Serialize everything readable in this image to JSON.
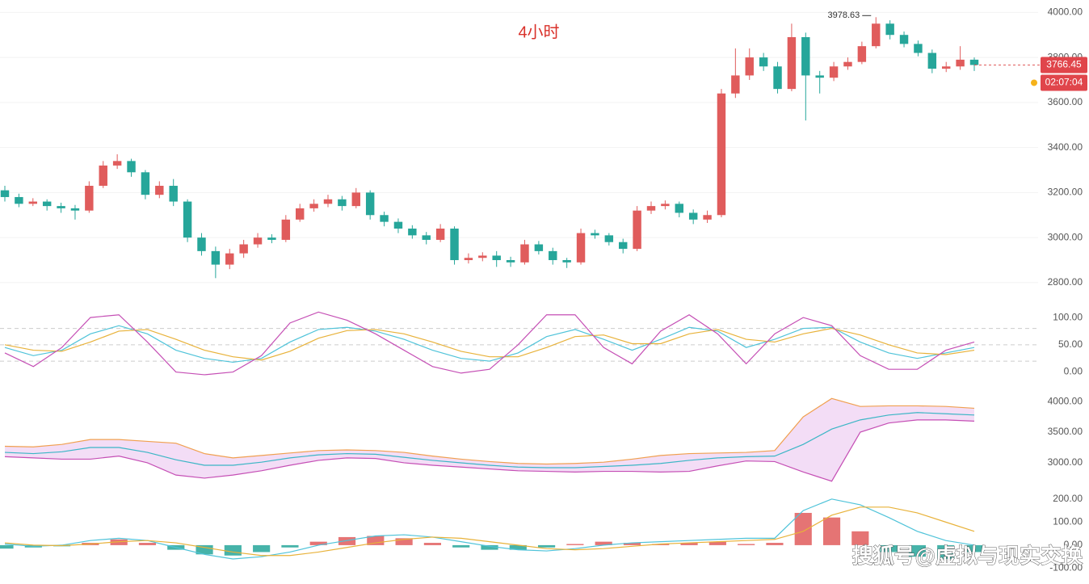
{
  "title": "4小时",
  "countdown": "02:07:04",
  "watermark": "搜狐号@虚拟与现实交换",
  "chart_data": [
    {
      "type": "candlestick",
      "up_color": "#e05c5c",
      "down_color": "#26a69a",
      "grid": true,
      "ylim": [
        2710,
        4055
      ],
      "yticks": [
        {
          "value": 4000,
          "label": "4000.00"
        },
        {
          "value": 3800,
          "label": "3800.00"
        },
        {
          "value": 3600,
          "label": "3600.00"
        },
        {
          "value": 3400,
          "label": "3400.00"
        },
        {
          "value": 3200,
          "label": "3200.00"
        },
        {
          "value": 3000,
          "label": "3000.00"
        },
        {
          "value": 2800,
          "label": "2800.00"
        }
      ],
      "candles": [
        [
          3210,
          3230,
          3160,
          3180
        ],
        [
          3180,
          3195,
          3135,
          3150
        ],
        [
          3150,
          3175,
          3140,
          3160
        ],
        [
          3160,
          3170,
          3120,
          3140
        ],
        [
          3140,
          3155,
          3110,
          3130
        ],
        [
          3130,
          3145,
          3080,
          3120
        ],
        [
          3120,
          3250,
          3110,
          3230
        ],
        [
          3230,
          3340,
          3220,
          3320
        ],
        [
          3320,
          3370,
          3305,
          3340
        ],
        [
          3340,
          3350,
          3270,
          3290
        ],
        [
          3290,
          3300,
          3170,
          3190
        ],
        [
          3190,
          3250,
          3175,
          3230
        ],
        [
          3230,
          3260,
          3140,
          3160
        ],
        [
          3160,
          3170,
          2980,
          3000
        ],
        [
          3000,
          3020,
          2920,
          2940
        ],
        [
          2940,
          2960,
          2820,
          2880
        ],
        [
          2880,
          2950,
          2860,
          2930
        ],
        [
          2930,
          2990,
          2910,
          2970
        ],
        [
          2970,
          3020,
          2955,
          3000
        ],
        [
          3000,
          3015,
          2975,
          2990
        ],
        [
          2990,
          3100,
          2980,
          3080
        ],
        [
          3080,
          3150,
          3070,
          3130
        ],
        [
          3130,
          3170,
          3115,
          3150
        ],
        [
          3150,
          3190,
          3135,
          3170
        ],
        [
          3170,
          3185,
          3120,
          3140
        ],
        [
          3140,
          3220,
          3130,
          3200
        ],
        [
          3200,
          3210,
          3080,
          3100
        ],
        [
          3100,
          3115,
          3050,
          3070
        ],
        [
          3070,
          3085,
          3020,
          3040
        ],
        [
          3040,
          3055,
          2995,
          3010
        ],
        [
          3010,
          3025,
          2970,
          2990
        ],
        [
          2990,
          3060,
          2980,
          3040
        ],
        [
          3040,
          3050,
          2880,
          2900
        ],
        [
          2900,
          2930,
          2885,
          2910
        ],
        [
          2910,
          2935,
          2895,
          2920
        ],
        [
          2920,
          2940,
          2870,
          2900
        ],
        [
          2900,
          2915,
          2870,
          2890
        ],
        [
          2890,
          2990,
          2880,
          2970
        ],
        [
          2970,
          2985,
          2925,
          2940
        ],
        [
          2940,
          2955,
          2880,
          2900
        ],
        [
          2900,
          2910,
          2865,
          2890
        ],
        [
          2890,
          3040,
          2880,
          3020
        ],
        [
          3020,
          3035,
          2995,
          3010
        ],
        [
          3010,
          3020,
          2965,
          2980
        ],
        [
          2980,
          2995,
          2930,
          2950
        ],
        [
          2950,
          3140,
          2940,
          3120
        ],
        [
          3120,
          3160,
          3105,
          3140
        ],
        [
          3140,
          3165,
          3125,
          3150
        ],
        [
          3150,
          3160,
          3090,
          3110
        ],
        [
          3110,
          3125,
          3060,
          3080
        ],
        [
          3080,
          3120,
          3065,
          3100
        ],
        [
          3100,
          3660,
          3090,
          3640
        ],
        [
          3640,
          3840,
          3620,
          3720
        ],
        [
          3720,
          3840,
          3700,
          3800
        ],
        [
          3800,
          3820,
          3740,
          3760
        ],
        [
          3760,
          3780,
          3640,
          3660
        ],
        [
          3660,
          3950,
          3650,
          3890
        ],
        [
          3890,
          3910,
          3520,
          3720
        ],
        [
          3720,
          3740,
          3640,
          3710
        ],
        [
          3710,
          3780,
          3695,
          3760
        ],
        [
          3760,
          3800,
          3745,
          3780
        ],
        [
          3780,
          3870,
          3770,
          3850
        ],
        [
          3850,
          3978.63,
          3840,
          3950
        ],
        [
          3950,
          3965,
          3880,
          3900
        ],
        [
          3900,
          3915,
          3845,
          3860
        ],
        [
          3860,
          3875,
          3805,
          3820
        ],
        [
          3820,
          3835,
          3730,
          3750
        ],
        [
          3750,
          3780,
          3735,
          3760
        ],
        [
          3760,
          3850,
          3745,
          3790
        ],
        [
          3790,
          3800,
          3740,
          3766.45
        ]
      ]
    },
    {
      "type": "line",
      "ylim": [
        -14,
        112
      ],
      "levels": [
        20,
        50,
        80
      ],
      "yticks": [
        {
          "value": 100,
          "label": "100.00"
        },
        {
          "value": 50,
          "label": "50.00"
        },
        {
          "value": 0,
          "label": "0.00"
        }
      ],
      "series": [
        {
          "color": "#4fc3d9",
          "values": [
            45,
            30,
            40,
            70,
            85,
            70,
            40,
            25,
            18,
            25,
            55,
            78,
            82,
            75,
            60,
            40,
            25,
            20,
            35,
            65,
            78,
            60,
            40,
            60,
            82,
            75,
            45,
            60,
            80,
            82,
            55,
            35,
            25,
            35,
            45
          ]
        },
        {
          "color": "#e8b23a",
          "values": [
            50,
            40,
            38,
            55,
            75,
            78,
            60,
            40,
            28,
            22,
            38,
            62,
            76,
            78,
            70,
            55,
            38,
            28,
            28,
            45,
            65,
            68,
            52,
            52,
            70,
            78,
            60,
            55,
            70,
            80,
            68,
            50,
            35,
            32,
            40
          ]
        },
        {
          "color": "#c54fb5",
          "values": [
            35,
            10,
            45,
            100,
            105,
            55,
            0,
            -5,
            0,
            30,
            90,
            110,
            95,
            70,
            40,
            10,
            -2,
            5,
            50,
            105,
            105,
            45,
            15,
            75,
            105,
            70,
            15,
            70,
            100,
            85,
            30,
            5,
            5,
            40,
            55
          ]
        }
      ]
    },
    {
      "type": "band",
      "ylim": [
        2670,
        4120
      ],
      "fill": "#f3ddf6",
      "yticks": [
        {
          "value": 4000,
          "label": "4000.00"
        },
        {
          "value": 3500,
          "label": "3500.00"
        },
        {
          "value": 3000,
          "label": "3000.00"
        }
      ],
      "series": [
        {
          "color": "#f0a050",
          "values": [
            3270,
            3260,
            3300,
            3380,
            3380,
            3350,
            3320,
            3150,
            3080,
            3120,
            3160,
            3200,
            3210,
            3200,
            3170,
            3110,
            3060,
            3020,
            2990,
            2980,
            2990,
            3010,
            3060,
            3120,
            3150,
            3160,
            3170,
            3200,
            3750,
            4050,
            3920,
            3930,
            3930,
            3920,
            3890
          ]
        },
        {
          "color": "#3bb6c5",
          "values": [
            3170,
            3150,
            3180,
            3250,
            3250,
            3170,
            3050,
            2960,
            2960,
            3010,
            3080,
            3130,
            3150,
            3140,
            3090,
            3040,
            3000,
            2960,
            2930,
            2920,
            2920,
            2940,
            2960,
            2990,
            3040,
            3080,
            3100,
            3110,
            3300,
            3550,
            3700,
            3780,
            3820,
            3800,
            3780
          ]
        },
        {
          "color": "#c54fb5",
          "values": [
            3100,
            3080,
            3060,
            3060,
            3110,
            3000,
            2800,
            2750,
            2800,
            2870,
            2960,
            3040,
            3080,
            3070,
            3000,
            2960,
            2930,
            2900,
            2870,
            2860,
            2850,
            2860,
            2860,
            2850,
            2860,
            2950,
            3030,
            3020,
            2850,
            2700,
            3500,
            3650,
            3700,
            3700,
            3680
          ]
        }
      ]
    },
    {
      "type": "macd",
      "ylim": [
        -130,
        245
      ],
      "up_color": "#e05c5c",
      "down_color": "#26a69a",
      "yticks": [
        {
          "value": 200,
          "label": "200.00"
        },
        {
          "value": 100,
          "label": "100.00"
        },
        {
          "value": 0,
          "label": "0.00"
        },
        {
          "value": -100,
          "label": "-100.00"
        }
      ],
      "histogram": [
        -15,
        -10,
        -5,
        10,
        25,
        10,
        -20,
        -40,
        -45,
        -30,
        -10,
        15,
        35,
        40,
        30,
        10,
        -10,
        -20,
        -20,
        -10,
        5,
        15,
        10,
        5,
        10,
        15,
        5,
        10,
        140,
        120,
        60,
        -30,
        -50,
        -60,
        -30
      ],
      "series": [
        {
          "color": "#4fc3d9",
          "values": [
            5,
            -5,
            0,
            20,
            30,
            20,
            -10,
            -40,
            -60,
            -50,
            -30,
            0,
            20,
            40,
            45,
            35,
            15,
            -5,
            -20,
            -25,
            -15,
            0,
            10,
            15,
            20,
            25,
            30,
            30,
            150,
            200,
            175,
            120,
            60,
            20,
            0
          ]
        },
        {
          "color": "#e8b23a",
          "values": [
            10,
            0,
            -2,
            5,
            15,
            20,
            10,
            -10,
            -30,
            -45,
            -45,
            -30,
            -10,
            10,
            25,
            35,
            30,
            15,
            0,
            -15,
            -20,
            -15,
            -5,
            5,
            10,
            15,
            20,
            25,
            60,
            130,
            165,
            165,
            140,
            100,
            60
          ]
        }
      ]
    }
  ]
}
